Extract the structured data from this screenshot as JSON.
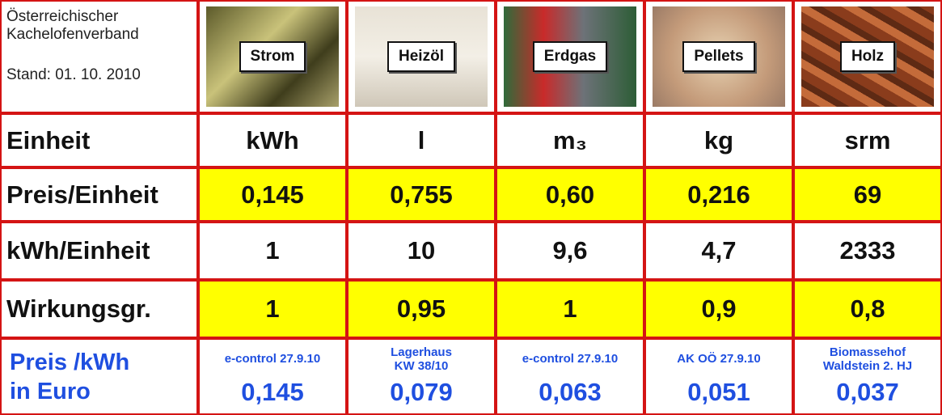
{
  "header": {
    "org": [
      "Österreichischer",
      "Kachelofenverband"
    ],
    "stand": "Stand: 01. 10. 2010",
    "columns": [
      "Strom",
      "Heizöl",
      "Erdgas",
      "Pellets",
      "Holz"
    ]
  },
  "table": {
    "rows": [
      {
        "label": "Einheit",
        "cells": [
          "kWh",
          "l",
          "m₃",
          "kg",
          "srm"
        ]
      },
      {
        "label": "Preis/Einheit",
        "cells": [
          "0,145",
          "0,755",
          "0,60",
          "0,216",
          "69"
        ]
      },
      {
        "label": "kWh/Einheit",
        "cells": [
          "1",
          "10",
          "9,6",
          "4,7",
          "2333"
        ]
      },
      {
        "label": "Wirkungsgr.",
        "cells": [
          "1",
          "0,95",
          "1",
          "0,9",
          "0,8"
        ]
      }
    ]
  },
  "result": {
    "label": [
      "Preis /kWh",
      "in Euro"
    ],
    "sources": [
      [
        "e-control 27.9.10"
      ],
      [
        "Lagerhaus",
        "KW 38/10"
      ],
      [
        "e-control 27.9.10"
      ],
      [
        "AK OÖ 27.9.10"
      ],
      [
        "Biomassehof",
        "Waldstein 2. HJ"
      ]
    ],
    "values": [
      "0,145",
      "0,079",
      "0,063",
      "0,051",
      "0,037"
    ]
  }
}
